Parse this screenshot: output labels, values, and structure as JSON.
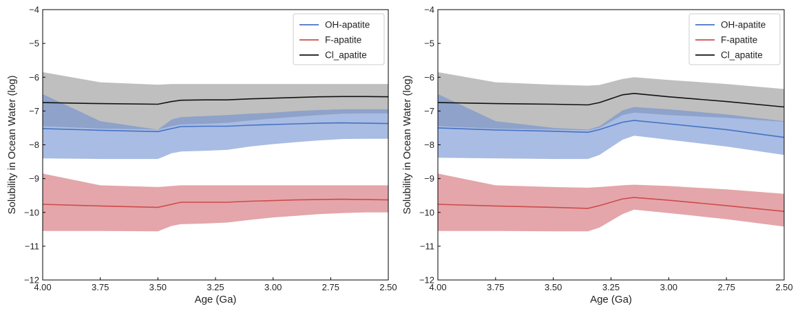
{
  "colors": {
    "oh": "#4472c4",
    "f": "#cc4b4b",
    "cl": "#111111",
    "oh_band": "#6f8fd0",
    "f_band": "#d26b72",
    "cl_band": "#8a8a8a"
  },
  "chart_data": [
    {
      "type": "line",
      "xlabel": "Age (Ga)",
      "ylabel": "Solubility in Ocean Water (log)",
      "xlim": [
        4.0,
        2.5
      ],
      "ylim": [
        -12,
        -4
      ],
      "xticks": [
        "4.00",
        "3.75",
        "3.50",
        "3.25",
        "3.00",
        "2.75",
        "2.50"
      ],
      "yticks": [
        "-4",
        "-5",
        "-6",
        "-7",
        "-8",
        "-9",
        "-10",
        "-11",
        "-12"
      ],
      "grid": false,
      "legend": "top-right",
      "series": [
        {
          "name": "OH-apatite",
          "x": [
            4.0,
            3.75,
            3.5,
            3.44,
            3.4,
            3.3,
            3.2,
            3.1,
            3.0,
            2.9,
            2.8,
            2.7,
            2.6,
            2.5
          ],
          "y": [
            -7.52,
            -7.57,
            -7.61,
            -7.52,
            -7.46,
            -7.45,
            -7.45,
            -7.42,
            -7.4,
            -7.38,
            -7.36,
            -7.35,
            -7.36,
            -7.37
          ],
          "upper": [
            -6.5,
            -7.3,
            -7.55,
            -7.25,
            -7.18,
            -7.15,
            -7.12,
            -7.08,
            -7.05,
            -7.0,
            -6.97,
            -6.95,
            -6.95,
            -6.95
          ],
          "lower": [
            -8.4,
            -8.42,
            -8.42,
            -8.25,
            -8.2,
            -8.18,
            -8.15,
            -8.05,
            -7.98,
            -7.92,
            -7.87,
            -7.83,
            -7.82,
            -7.82
          ]
        },
        {
          "name": "F-apatite",
          "x": [
            4.0,
            3.75,
            3.5,
            3.44,
            3.4,
            3.3,
            3.2,
            3.1,
            3.0,
            2.9,
            2.8,
            2.7,
            2.6,
            2.5
          ],
          "y": [
            -9.76,
            -9.81,
            -9.85,
            -9.76,
            -9.7,
            -9.7,
            -9.7,
            -9.67,
            -9.65,
            -9.63,
            -9.62,
            -9.61,
            -9.62,
            -9.63
          ],
          "upper": [
            -8.85,
            -9.2,
            -9.25,
            -9.22,
            -9.2,
            -9.2,
            -9.2,
            -9.2,
            -9.2,
            -9.2,
            -9.2,
            -9.2,
            -9.2,
            -9.2
          ],
          "lower": [
            -10.55,
            -10.55,
            -10.56,
            -10.4,
            -10.35,
            -10.33,
            -10.3,
            -10.22,
            -10.15,
            -10.1,
            -10.05,
            -10.02,
            -10.0,
            -10.0
          ]
        },
        {
          "name": "Cl_apatite",
          "x": [
            4.0,
            3.75,
            3.5,
            3.44,
            3.4,
            3.3,
            3.2,
            3.1,
            3.0,
            2.9,
            2.8,
            2.7,
            2.6,
            2.5
          ],
          "y": [
            -6.75,
            -6.78,
            -6.8,
            -6.72,
            -6.68,
            -6.67,
            -6.67,
            -6.64,
            -6.62,
            -6.6,
            -6.58,
            -6.57,
            -6.57,
            -6.58
          ],
          "upper": [
            -5.85,
            -6.15,
            -6.22,
            -6.2,
            -6.2,
            -6.2,
            -6.2,
            -6.2,
            -6.2,
            -6.2,
            -6.2,
            -6.2,
            -6.2,
            -6.2
          ],
          "lower": [
            -7.45,
            -7.52,
            -7.55,
            -7.45,
            -7.4,
            -7.38,
            -7.35,
            -7.28,
            -7.22,
            -7.17,
            -7.12,
            -7.08,
            -7.07,
            -7.07
          ]
        }
      ]
    },
    {
      "type": "line",
      "xlabel": "Age (Ga)",
      "ylabel": "Solubility in Ocean Water (log)",
      "xlim": [
        4.0,
        2.5
      ],
      "ylim": [
        -12,
        -4
      ],
      "xticks": [
        "4.00",
        "3.75",
        "3.50",
        "3.25",
        "3.00",
        "2.75",
        "2.50"
      ],
      "yticks": [
        "-4",
        "-5",
        "-6",
        "-7",
        "-8",
        "-9",
        "-10",
        "-11",
        "-12"
      ],
      "grid": false,
      "legend": "top-right",
      "series": [
        {
          "name": "OH-apatite",
          "x": [
            4.0,
            3.75,
            3.5,
            3.35,
            3.3,
            3.2,
            3.15,
            3.0,
            2.75,
            2.5
          ],
          "y": [
            -7.5,
            -7.56,
            -7.6,
            -7.63,
            -7.55,
            -7.33,
            -7.28,
            -7.38,
            -7.55,
            -7.78
          ],
          "upper": [
            -6.5,
            -7.3,
            -7.5,
            -7.55,
            -7.45,
            -6.98,
            -6.88,
            -6.95,
            -7.1,
            -7.3
          ],
          "lower": [
            -8.38,
            -8.4,
            -8.42,
            -8.42,
            -8.3,
            -7.85,
            -7.73,
            -7.85,
            -8.05,
            -8.3
          ]
        },
        {
          "name": "F-apatite",
          "x": [
            4.0,
            3.75,
            3.5,
            3.35,
            3.3,
            3.2,
            3.15,
            3.0,
            2.75,
            2.5
          ],
          "y": [
            -9.76,
            -9.81,
            -9.85,
            -9.88,
            -9.8,
            -9.6,
            -9.56,
            -9.64,
            -9.8,
            -9.97
          ],
          "upper": [
            -8.85,
            -9.2,
            -9.25,
            -9.27,
            -9.25,
            -9.2,
            -9.18,
            -9.22,
            -9.32,
            -9.45
          ],
          "lower": [
            -10.55,
            -10.55,
            -10.56,
            -10.56,
            -10.45,
            -10.05,
            -9.92,
            -10.02,
            -10.2,
            -10.42
          ]
        },
        {
          "name": "Cl_apatite",
          "x": [
            4.0,
            3.75,
            3.5,
            3.35,
            3.3,
            3.2,
            3.15,
            3.0,
            2.75,
            2.5
          ],
          "y": [
            -6.75,
            -6.78,
            -6.8,
            -6.82,
            -6.75,
            -6.52,
            -6.48,
            -6.58,
            -6.72,
            -6.88
          ],
          "upper": [
            -5.85,
            -6.15,
            -6.22,
            -6.25,
            -6.23,
            -6.05,
            -6.0,
            -6.08,
            -6.2,
            -6.35
          ],
          "lower": [
            -7.45,
            -7.52,
            -7.55,
            -7.57,
            -7.5,
            -7.12,
            -7.05,
            -7.12,
            -7.2,
            -7.32
          ]
        }
      ]
    }
  ]
}
